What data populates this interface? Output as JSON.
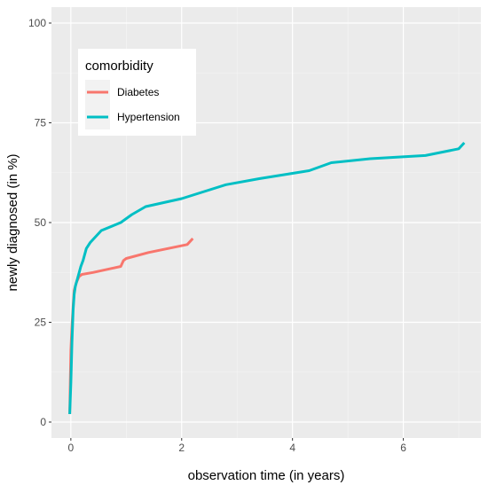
{
  "chart_data": {
    "type": "line",
    "title": "",
    "xlabel": "observation time (in years)",
    "ylabel": "newly diagnosed (in %)",
    "xlim": [
      -0.35,
      7.4
    ],
    "ylim": [
      -4,
      104
    ],
    "x_ticks": [
      0,
      2,
      4,
      6
    ],
    "y_ticks": [
      0,
      25,
      50,
      75,
      100
    ],
    "x_tick_labels": [
      "0",
      "2",
      "4",
      "6"
    ],
    "y_tick_labels": [
      "0",
      "25",
      "50",
      "75",
      "100"
    ],
    "grid": true,
    "panel_background": "#EBEBEB",
    "legend": {
      "title": "comorbidity",
      "placement": "top-left",
      "entries": [
        "Diabetes",
        "Hypertension"
      ]
    },
    "series": [
      {
        "name": "Diabetes",
        "color": "#F8766D",
        "x": [
          -0.02,
          -0.01,
          0.0,
          0.02,
          0.04,
          0.06,
          0.1,
          0.15,
          0.2,
          0.4,
          0.9,
          0.95,
          1.0,
          1.4,
          2.1,
          2.2
        ],
        "y": [
          2,
          10,
          18,
          24,
          29,
          33,
          35,
          36.5,
          37,
          37.5,
          39,
          40.5,
          41,
          42.5,
          44.5,
          46
        ]
      },
      {
        "name": "Hypertension",
        "color": "#00BFC4",
        "x": [
          -0.02,
          0.0,
          0.02,
          0.04,
          0.06,
          0.08,
          0.12,
          0.18,
          0.22,
          0.28,
          0.35,
          0.55,
          0.9,
          1.1,
          1.35,
          2.0,
          2.8,
          3.4,
          4.3,
          4.7,
          5.4,
          6.4,
          7.0,
          7.1
        ],
        "y": [
          2,
          10,
          20,
          28,
          32,
          34,
          36,
          39,
          40.5,
          43.5,
          45,
          48,
          50,
          52,
          54,
          56,
          59.5,
          61,
          63,
          65,
          66,
          66.8,
          68.5,
          70
        ]
      }
    ]
  }
}
